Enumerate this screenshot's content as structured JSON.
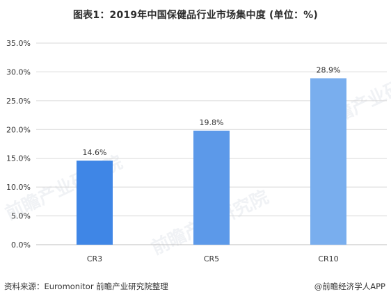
{
  "title": "图表1：2019年中国保健品行业市场集中度 (单位：%)",
  "footer": {
    "source": "资料来源：Euromonitor 前瞻产业研究院整理",
    "brand": "@前瞻经济学人APP"
  },
  "watermark": "前瞻产业研究院",
  "chart_data": {
    "type": "bar",
    "title": "图表1：2019年中国保健品行业市场集中度 (单位：%)",
    "xlabel": "",
    "ylabel": "",
    "categories": [
      "CR3",
      "CR5",
      "CR10"
    ],
    "values": [
      14.6,
      19.8,
      28.9
    ],
    "data_labels": [
      "14.6%",
      "19.8%",
      "28.9%"
    ],
    "ylim": [
      0,
      35
    ],
    "yticks": [
      0,
      5,
      10,
      15,
      20,
      25,
      30,
      35
    ],
    "ytick_labels": [
      "0.0%",
      "5.0%",
      "10.0%",
      "15.0%",
      "20.0%",
      "25.0%",
      "30.0%",
      "35.0%"
    ],
    "grid": true,
    "legend": "none",
    "colors": [
      "#3f86e6",
      "#5c99e9",
      "#79aeee"
    ]
  }
}
